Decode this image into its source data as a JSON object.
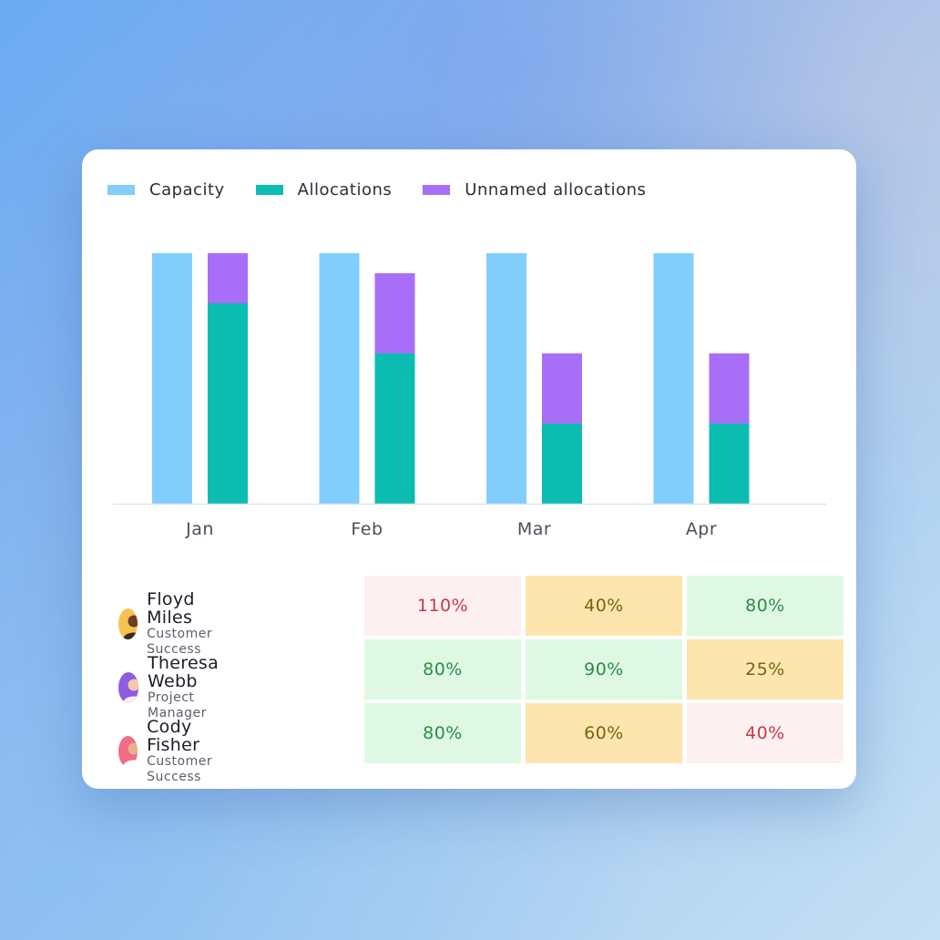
{
  "chart_data": {
    "type": "bar",
    "categories": [
      "Jan",
      "Feb",
      "Mar",
      "Apr"
    ],
    "series": [
      {
        "name": "Capacity",
        "color": "#82cdfc",
        "values": [
          100,
          100,
          100,
          100
        ]
      },
      {
        "name": "Allocations",
        "color": "#0bbdb0",
        "values": [
          80,
          60,
          32,
          32
        ]
      },
      {
        "name": "Unnamed allocations",
        "color": "#a86ef8",
        "values": [
          20,
          32,
          28,
          28
        ]
      }
    ],
    "stacked_series": [
      "Allocations",
      "Unnamed allocations"
    ],
    "ylim": [
      0,
      100
    ],
    "legend_position": "top-left",
    "grid": false
  },
  "legend": [
    {
      "label": "Capacity",
      "color": "#82cdfc"
    },
    {
      "label": "Allocations",
      "color": "#0bbdb0"
    },
    {
      "label": "Unnamed allocations",
      "color": "#a86ef8"
    }
  ],
  "people": [
    {
      "name": "Floyd Miles",
      "role": "Customer Success",
      "avatar_color": "#f6c44e",
      "cells": [
        {
          "value": "110%",
          "status": "over"
        },
        {
          "value": "40%",
          "status": "mid"
        },
        {
          "value": "80%",
          "status": "ok"
        }
      ]
    },
    {
      "name": "Theresa Webb",
      "role": "Project Manager",
      "avatar_color": "#8d5ce0",
      "cells": [
        {
          "value": "80%",
          "status": "ok"
        },
        {
          "value": "90%",
          "status": "ok"
        },
        {
          "value": "25%",
          "status": "mid"
        }
      ]
    },
    {
      "name": "Cody Fisher",
      "role": "Customer Success",
      "avatar_color": "#f06d86",
      "cells": [
        {
          "value": "80%",
          "status": "ok"
        },
        {
          "value": "60%",
          "status": "mid"
        },
        {
          "value": "40%",
          "status": "over"
        }
      ]
    }
  ]
}
